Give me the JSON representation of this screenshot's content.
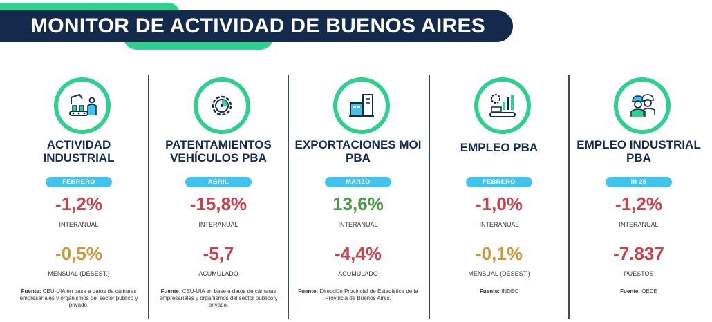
{
  "header": {
    "title": "MONITOR DE ACTIVIDAD DE BUENOS AIRES"
  },
  "colors": {
    "accent_green": "#2dd08c",
    "navy": "#142a4d",
    "pill_blue": "#3fc4f0",
    "negative_red": "#c8404a",
    "positive_green": "#4a9a45",
    "neutral_gold": "#c9963a"
  },
  "cards": [
    {
      "icon": "factory-worker-icon",
      "title": "ACTIVIDAD INDUSTRIAL",
      "period": "FEBRERO",
      "value1": "-1,2%",
      "value1_color": "red",
      "label1": "INTERANUAL",
      "value2": "-0,5%",
      "value2_color": "gold",
      "label2": "MENSUAL (DESEST.)",
      "source_label": "Fuente:",
      "source_text": "CEU-UIA en base a datos de cámaras empresariales y organismos del sector público y privado."
    },
    {
      "icon": "gear-chart-icon",
      "title": "PATENTAMIENTOS VEHÍCULOS PBA",
      "period": "ABRIL",
      "value1": "-15,8%",
      "value1_color": "red",
      "label1": "INTERANUAL",
      "value2": "-5,7",
      "value2_color": "red",
      "label2": "ACUMULADO",
      "source_label": "Fuente:",
      "source_text": "CEU-UIA en base a datos de cámaras empresariales y organismos del sector público y privado."
    },
    {
      "icon": "export-building-icon",
      "title": "EXPORTACIONES MOI PBA",
      "period": "MARZO",
      "value1": "13,6%",
      "value1_color": "green",
      "label1": "INTERANUAL",
      "value2": "-4,4%",
      "value2_color": "red",
      "label2": "ACUMULADO",
      "source_label": "Fuente:",
      "source_text": "Dirección Provincial de Estadística de la  Provincia de Buenos Aires."
    },
    {
      "icon": "employment-machine-icon",
      "title": "EMPLEO PBA",
      "period": "FEBRERO",
      "value1": "-1,0%",
      "value1_color": "red",
      "label1": "INTERANUAL",
      "value2": "-0,1%",
      "value2_color": "gold",
      "label2": "MENSUAL (DESEST.)",
      "source_label": "Fuente:",
      "source_text": "INDEC"
    },
    {
      "icon": "industrial-workers-icon",
      "title": "EMPLEO INDUSTRIAL PBA",
      "period": "III 25",
      "value1": "-1,2%",
      "value1_color": "red",
      "label1": "INTERANUAL",
      "value2": "-7.837",
      "value2_color": "red",
      "label2": "PUESTOS",
      "source_label": "Fuente:",
      "source_text": "OEDE"
    }
  ]
}
